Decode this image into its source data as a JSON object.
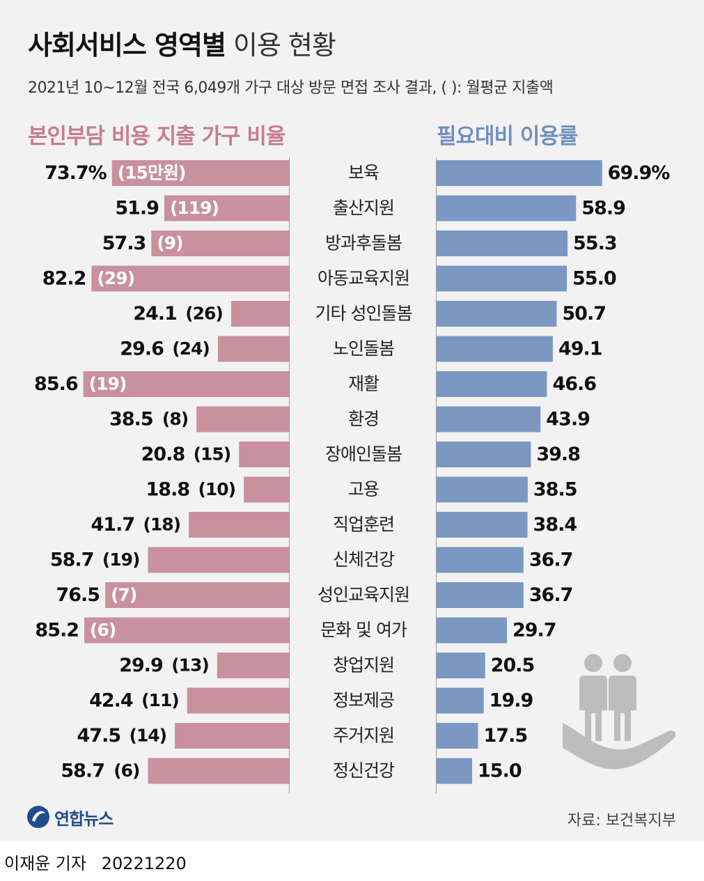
{
  "title": {
    "bold": "사회서비스 영역별",
    "light": "이용 현황"
  },
  "subtitle": "2021년 10~12월 전국 6,049개 가구 대상 방문 면접 조사 결과, (  ): 월평균 지출액",
  "headers": {
    "left": "본인부담 비용 지출 가구 비율",
    "right": "필요대비 이용률"
  },
  "colors": {
    "left_bar": "#c9909d",
    "right_bar": "#7b98c3",
    "left_header": "#c67d8c",
    "right_header": "#6f8fbe",
    "icon": "#bdbdbd",
    "background": "#f2f2f2"
  },
  "chart_data": {
    "type": "bar",
    "categories": [
      "보육",
      "출산지원",
      "방과후돌봄",
      "아동교육지원",
      "기타 성인돌봄",
      "노인돌봄",
      "재활",
      "환경",
      "장애인돌봄",
      "고용",
      "직업훈련",
      "신체건강",
      "성인교육지원",
      "문화 및 여가",
      "창업지원",
      "정보제공",
      "주거지원",
      "정신건강"
    ],
    "series": [
      {
        "name": "본인부담 비용 지출 가구 비율",
        "values": [
          73.7,
          51.9,
          57.3,
          82.2,
          24.1,
          29.6,
          85.6,
          38.5,
          20.8,
          18.8,
          41.7,
          58.7,
          76.5,
          85.2,
          29.9,
          42.4,
          47.5,
          58.7
        ],
        "value_labels": [
          "73.7%",
          "51.9",
          "57.3",
          "82.2",
          "24.1",
          "29.6",
          "85.6",
          "38.5",
          "20.8",
          "18.8",
          "41.7",
          "58.7",
          "76.5",
          "85.2",
          "29.9",
          "42.4",
          "47.5",
          "58.7"
        ],
        "spend_labels": [
          "(15만원)",
          "(119)",
          "(9)",
          "(29)",
          "(26)",
          "(24)",
          "(19)",
          "(8)",
          "(15)",
          "(10)",
          "(18)",
          "(19)",
          "(7)",
          "(6)",
          "(13)",
          "(11)",
          "(14)",
          "(6)"
        ]
      },
      {
        "name": "필요대비 이용률",
        "values": [
          69.9,
          58.9,
          55.3,
          55.0,
          50.7,
          49.1,
          46.6,
          43.9,
          39.8,
          38.5,
          38.4,
          36.7,
          36.7,
          29.7,
          20.5,
          19.9,
          17.5,
          15.0
        ],
        "value_labels": [
          "69.9%",
          "58.9",
          "55.3",
          "55.0",
          "50.7",
          "49.1",
          "46.6",
          "43.9",
          "39.8",
          "38.5",
          "38.4",
          "36.7",
          "36.7",
          "29.7",
          "20.5",
          "19.9",
          "17.5",
          "15.0"
        ]
      }
    ]
  },
  "footer": {
    "logo": "연합뉴스",
    "source": "자료: 보건복지부",
    "reporter": "이재윤 기자",
    "date": "20221220"
  }
}
